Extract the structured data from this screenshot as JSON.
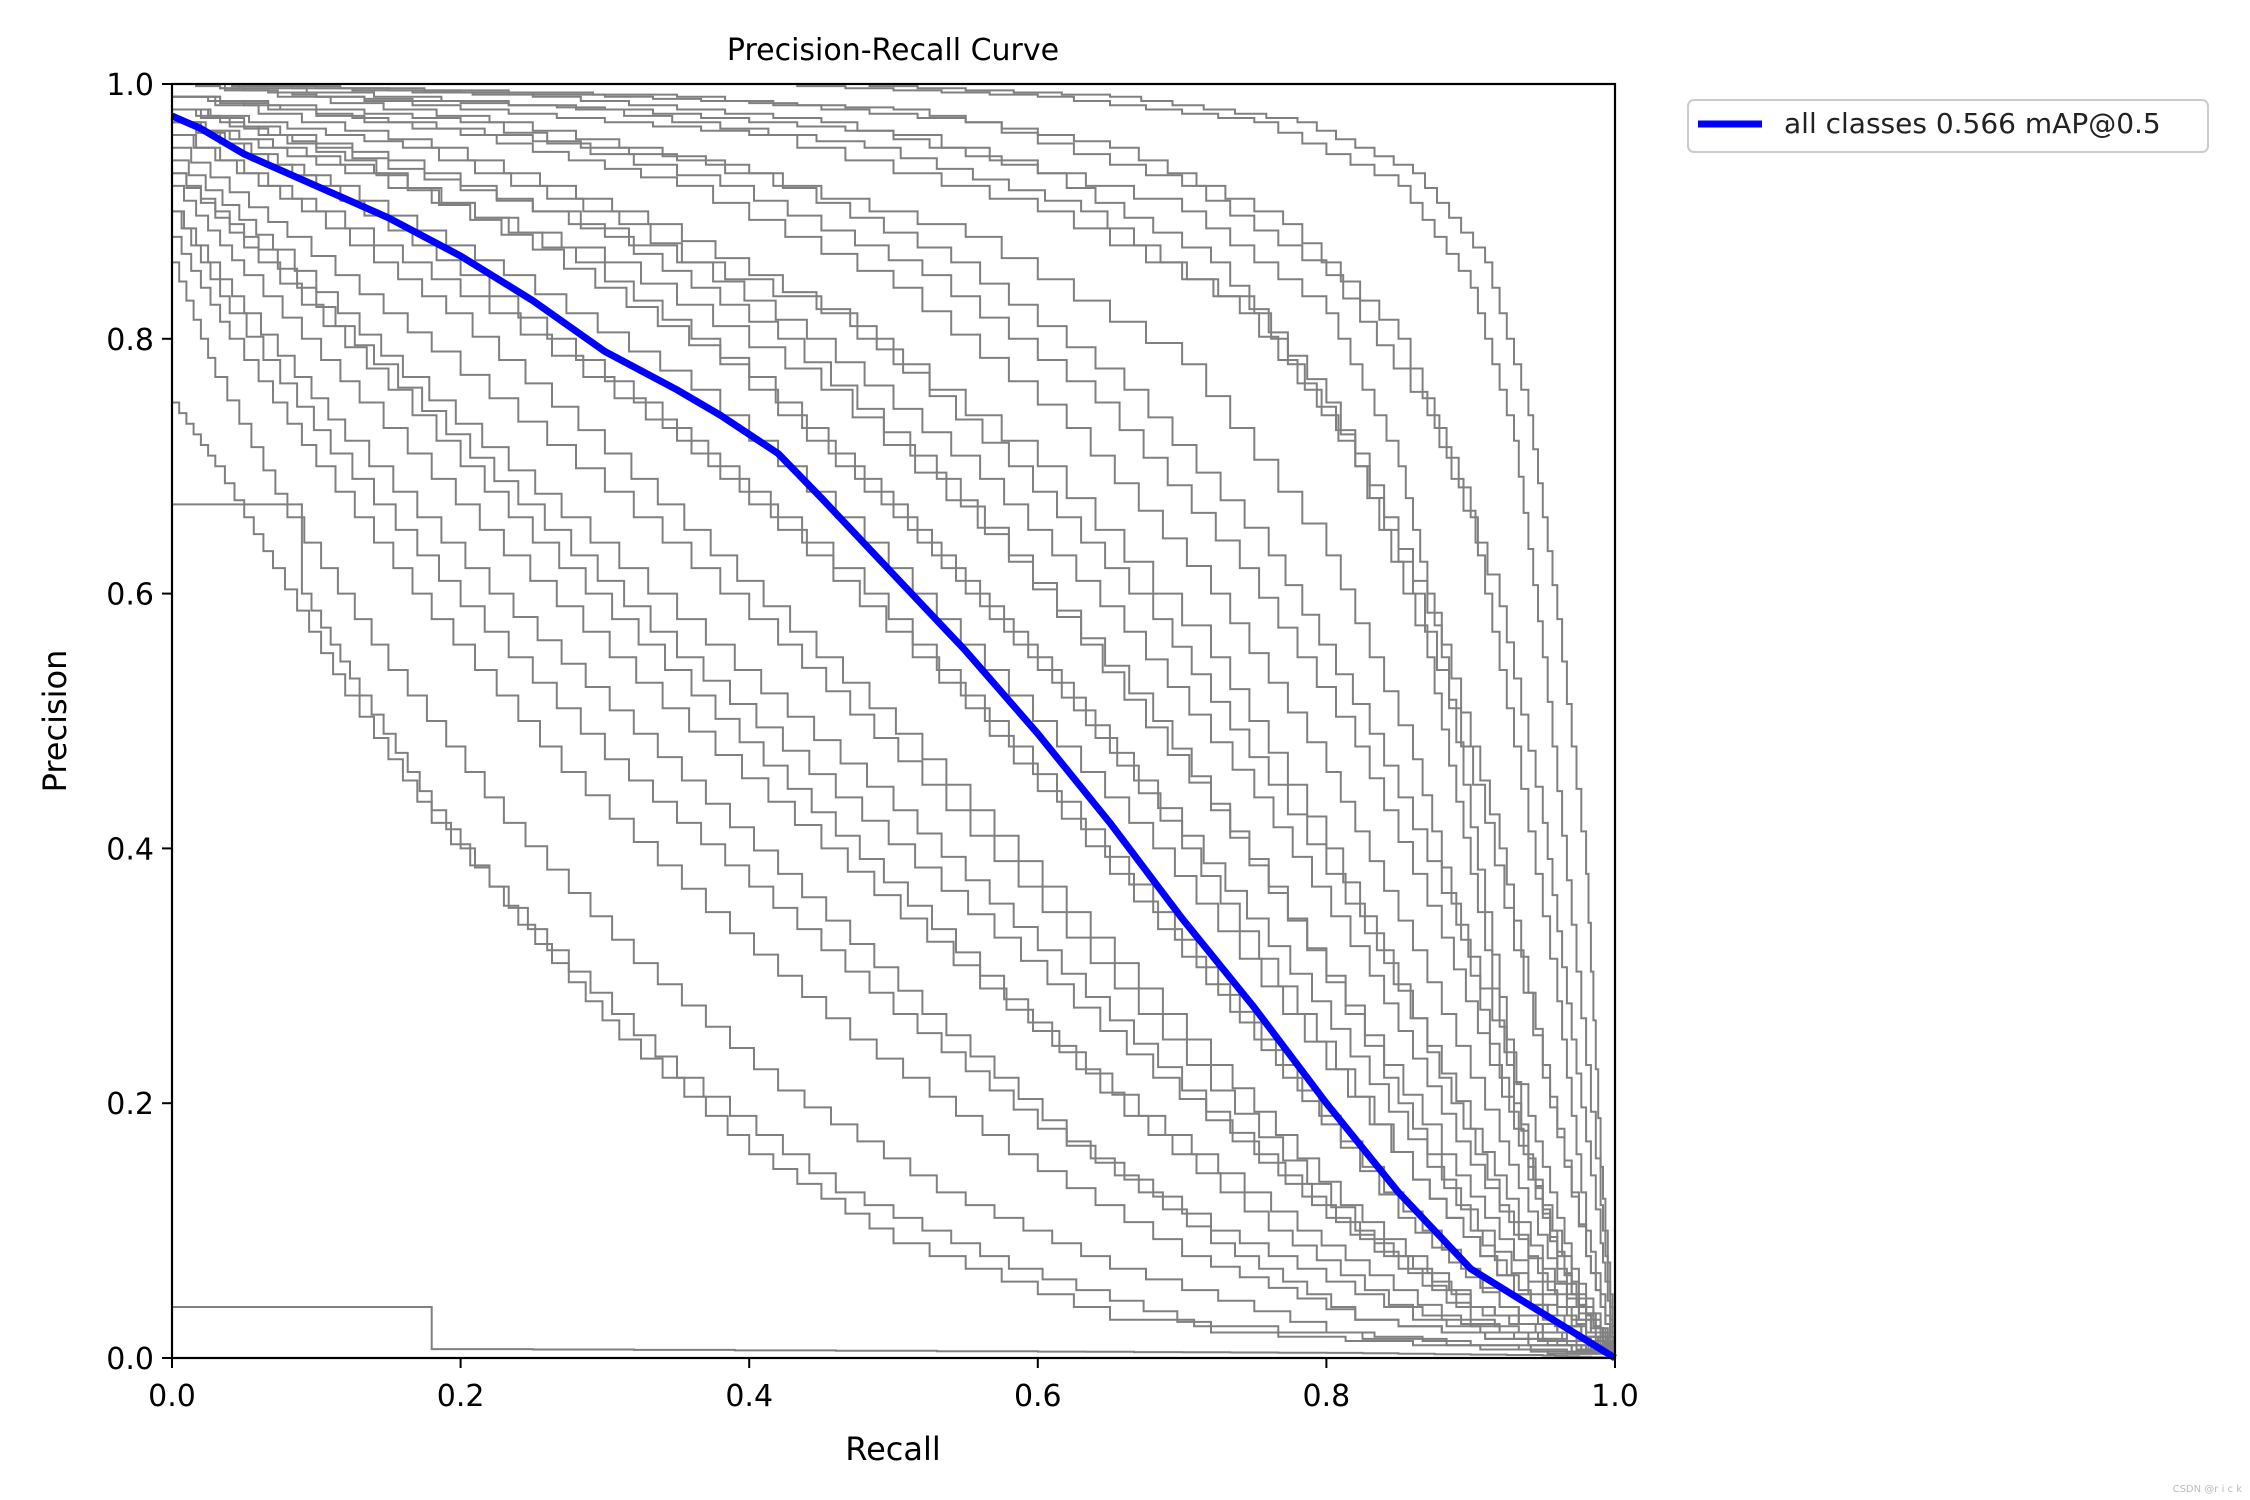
{
  "chart_data": {
    "type": "line",
    "title": "Precision-Recall Curve",
    "xlabel": "Recall",
    "ylabel": "Precision",
    "xlim": [
      0.0,
      1.0
    ],
    "ylim": [
      0.0,
      1.0
    ],
    "xticks": [
      "0.0",
      "0.2",
      "0.4",
      "0.6",
      "0.8",
      "1.0"
    ],
    "yticks": [
      "0.0",
      "0.2",
      "0.4",
      "0.6",
      "0.8",
      "1.0"
    ],
    "grid": false,
    "legend": {
      "placement": "outside-top-right",
      "entries": [
        "all classes 0.566 mAP@0.5"
      ]
    },
    "colors": {
      "class_curves": "#808080",
      "all_classes": "#0000ff"
    },
    "series": [
      {
        "name": "all classes 0.566 mAP@0.5",
        "x": [
          0.0,
          0.02,
          0.05,
          0.08,
          0.11,
          0.15,
          0.2,
          0.25,
          0.3,
          0.35,
          0.38,
          0.42,
          0.45,
          0.5,
          0.55,
          0.6,
          0.65,
          0.7,
          0.75,
          0.8,
          0.85,
          0.9,
          0.95,
          1.0
        ],
        "y": [
          0.975,
          0.965,
          0.945,
          0.93,
          0.915,
          0.895,
          0.865,
          0.83,
          0.79,
          0.76,
          0.74,
          0.71,
          0.675,
          0.615,
          0.555,
          0.49,
          0.42,
          0.345,
          0.275,
          0.2,
          0.13,
          0.07,
          0.035,
          0.0
        ]
      }
    ],
    "class_curves": [
      {
        "x": [
          0.0,
          0.1,
          0.3,
          0.5,
          0.7,
          0.8,
          0.85,
          0.88,
          0.91,
          0.94,
          0.97,
          1.0
        ],
        "y": [
          1.0,
          0.99,
          0.98,
          0.96,
          0.9,
          0.82,
          0.7,
          0.55,
          0.35,
          0.15,
          0.05,
          0.0
        ]
      },
      {
        "x": [
          0.0,
          0.2,
          0.4,
          0.6,
          0.75,
          0.82,
          0.87,
          0.9,
          0.93,
          0.96,
          1.0
        ],
        "y": [
          1.0,
          0.98,
          0.96,
          0.9,
          0.82,
          0.7,
          0.55,
          0.38,
          0.2,
          0.07,
          0.0
        ]
      },
      {
        "x": [
          0.0,
          0.15,
          0.35,
          0.55,
          0.7,
          0.8,
          0.86,
          0.9,
          0.94,
          0.97,
          1.0
        ],
        "y": [
          0.99,
          0.97,
          0.94,
          0.88,
          0.78,
          0.63,
          0.47,
          0.3,
          0.14,
          0.05,
          0.0
        ]
      },
      {
        "x": [
          0.0,
          0.1,
          0.25,
          0.45,
          0.6,
          0.72,
          0.8,
          0.87,
          0.92,
          0.96,
          1.0
        ],
        "y": [
          0.98,
          0.95,
          0.9,
          0.82,
          0.7,
          0.55,
          0.4,
          0.24,
          0.12,
          0.04,
          0.0
        ]
      },
      {
        "x": [
          0.0,
          0.12,
          0.3,
          0.45,
          0.58,
          0.68,
          0.76,
          0.84,
          0.9,
          0.95,
          1.0
        ],
        "y": [
          0.97,
          0.93,
          0.86,
          0.76,
          0.63,
          0.5,
          0.37,
          0.22,
          0.1,
          0.03,
          0.0
        ]
      },
      {
        "x": [
          0.0,
          0.1,
          0.22,
          0.35,
          0.48,
          0.58,
          0.68,
          0.77,
          0.85,
          0.92,
          1.0
        ],
        "y": [
          0.96,
          0.9,
          0.82,
          0.72,
          0.6,
          0.48,
          0.35,
          0.22,
          0.11,
          0.04,
          0.0
        ]
      },
      {
        "x": [
          0.0,
          0.08,
          0.18,
          0.3,
          0.42,
          0.52,
          0.62,
          0.72,
          0.82,
          0.9,
          1.0
        ],
        "y": [
          0.95,
          0.88,
          0.79,
          0.68,
          0.56,
          0.45,
          0.33,
          0.21,
          0.1,
          0.04,
          0.0
        ]
      },
      {
        "x": [
          0.0,
          0.06,
          0.15,
          0.25,
          0.36,
          0.46,
          0.56,
          0.66,
          0.76,
          0.86,
          1.0
        ],
        "y": [
          0.93,
          0.86,
          0.76,
          0.64,
          0.52,
          0.41,
          0.3,
          0.19,
          0.1,
          0.03,
          0.0
        ]
      },
      {
        "x": [
          0.0,
          0.05,
          0.12,
          0.22,
          0.32,
          0.42,
          0.52,
          0.62,
          0.72,
          0.82,
          1.0
        ],
        "y": [
          0.9,
          0.82,
          0.72,
          0.6,
          0.49,
          0.38,
          0.27,
          0.17,
          0.09,
          0.03,
          0.0
        ]
      },
      {
        "x": [
          0.0,
          0.04,
          0.1,
          0.18,
          0.27,
          0.37,
          0.47,
          0.58,
          0.7,
          0.82,
          1.0
        ],
        "y": [
          0.88,
          0.8,
          0.7,
          0.58,
          0.46,
          0.35,
          0.25,
          0.16,
          0.08,
          0.03,
          0.0
        ]
      },
      {
        "x": [
          0.0,
          0.03,
          0.08,
          0.15,
          0.23,
          0.32,
          0.42,
          0.53,
          0.65,
          0.8,
          1.0
        ],
        "y": [
          0.86,
          0.77,
          0.66,
          0.54,
          0.42,
          0.31,
          0.21,
          0.13,
          0.07,
          0.02,
          0.0
        ]
      },
      {
        "x": [
          0.0,
          0.03,
          0.07,
          0.12,
          0.18,
          0.26,
          0.35,
          0.46,
          0.58,
          0.72,
          1.0
        ],
        "y": [
          0.75,
          0.7,
          0.62,
          0.52,
          0.42,
          0.32,
          0.22,
          0.13,
          0.07,
          0.02,
          0.0
        ]
      },
      {
        "x": [
          0.0,
          0.09,
          0.09,
          0.13,
          0.18,
          0.24,
          0.31,
          0.4,
          0.5,
          0.65,
          1.0
        ],
        "y": [
          0.67,
          0.67,
          0.6,
          0.52,
          0.43,
          0.34,
          0.25,
          0.16,
          0.09,
          0.03,
          0.0
        ]
      },
      {
        "x": [
          0.0,
          0.2,
          0.35,
          0.5,
          0.62,
          0.72,
          0.8,
          0.86,
          0.92,
          0.96,
          1.0
        ],
        "y": [
          0.99,
          0.96,
          0.92,
          0.84,
          0.73,
          0.6,
          0.46,
          0.32,
          0.17,
          0.06,
          0.0
        ]
      },
      {
        "x": [
          0.0,
          0.15,
          0.3,
          0.42,
          0.53,
          0.63,
          0.72,
          0.8,
          0.88,
          0.94,
          1.0
        ],
        "y": [
          0.98,
          0.94,
          0.88,
          0.8,
          0.69,
          0.56,
          0.43,
          0.3,
          0.16,
          0.06,
          0.0
        ]
      },
      {
        "x": [
          0.0,
          0.25,
          0.45,
          0.6,
          0.72,
          0.8,
          0.86,
          0.91,
          0.95,
          0.98,
          1.0
        ],
        "y": [
          1.0,
          0.99,
          0.97,
          0.93,
          0.86,
          0.75,
          0.6,
          0.42,
          0.22,
          0.08,
          0.0
        ]
      },
      {
        "x": [
          0.0,
          0.3,
          0.5,
          0.65,
          0.77,
          0.85,
          0.9,
          0.93,
          0.96,
          0.98,
          1.0
        ],
        "y": [
          1.0,
          0.99,
          0.98,
          0.95,
          0.89,
          0.8,
          0.66,
          0.48,
          0.28,
          0.1,
          0.0
        ]
      },
      {
        "x": [
          0.0,
          0.4,
          0.6,
          0.75,
          0.85,
          0.9,
          0.93,
          0.95,
          0.97,
          0.99,
          1.0
        ],
        "y": [
          1.0,
          1.0,
          0.99,
          0.97,
          0.92,
          0.84,
          0.72,
          0.55,
          0.34,
          0.12,
          0.0
        ]
      },
      {
        "x": [
          0.0,
          0.1,
          0.2,
          0.32,
          0.44,
          0.55,
          0.65,
          0.75,
          0.84,
          0.92,
          1.0
        ],
        "y": [
          0.97,
          0.92,
          0.85,
          0.75,
          0.63,
          0.51,
          0.38,
          0.25,
          0.13,
          0.04,
          0.0
        ]
      },
      {
        "x": [
          0.0,
          0.12,
          0.25,
          0.38,
          0.5,
          0.6,
          0.7,
          0.79,
          0.87,
          0.94,
          1.0
        ],
        "y": [
          0.98,
          0.94,
          0.87,
          0.78,
          0.66,
          0.54,
          0.41,
          0.28,
          0.15,
          0.05,
          0.0
        ]
      },
      {
        "x": [
          0.0,
          0.07,
          0.16,
          0.27,
          0.39,
          0.5,
          0.6,
          0.7,
          0.8,
          0.9,
          1.0
        ],
        "y": [
          0.94,
          0.87,
          0.77,
          0.66,
          0.54,
          0.43,
          0.32,
          0.21,
          0.11,
          0.03,
          0.0
        ]
      },
      {
        "x": [
          0.0,
          0.18,
          0.33,
          0.47,
          0.58,
          0.68,
          0.76,
          0.84,
          0.9,
          0.95,
          1.0
        ],
        "y": [
          0.99,
          0.95,
          0.89,
          0.81,
          0.7,
          0.58,
          0.45,
          0.31,
          0.18,
          0.07,
          0.0
        ]
      },
      {
        "x": [
          0.0,
          0.22,
          0.4,
          0.54,
          0.66,
          0.76,
          0.83,
          0.89,
          0.94,
          0.97,
          1.0
        ],
        "y": [
          1.0,
          0.97,
          0.93,
          0.86,
          0.76,
          0.63,
          0.49,
          0.34,
          0.19,
          0.07,
          0.0
        ]
      },
      {
        "x": [
          0.0,
          0.35,
          0.55,
          0.7,
          0.8,
          0.87,
          0.92,
          0.95,
          0.97,
          0.99,
          1.0
        ],
        "y": [
          1.0,
          0.99,
          0.97,
          0.92,
          0.85,
          0.74,
          0.59,
          0.42,
          0.25,
          0.09,
          0.0
        ]
      },
      {
        "x": [
          0.0,
          0.05,
          0.13,
          0.23,
          0.34,
          0.45,
          0.56,
          0.67,
          0.78,
          0.88,
          1.0
        ],
        "y": [
          0.92,
          0.85,
          0.75,
          0.63,
          0.51,
          0.4,
          0.29,
          0.19,
          0.1,
          0.03,
          0.0
        ]
      },
      {
        "x": [
          0.0,
          0.14,
          0.28,
          0.4,
          0.51,
          0.61,
          0.7,
          0.78,
          0.86,
          0.93,
          1.0
        ],
        "y": [
          0.97,
          0.93,
          0.86,
          0.77,
          0.65,
          0.53,
          0.4,
          0.27,
          0.14,
          0.05,
          0.0
        ]
      },
      {
        "x": [
          0.0,
          0.28,
          0.48,
          0.63,
          0.74,
          0.82,
          0.88,
          0.92,
          0.95,
          0.98,
          1.0
        ],
        "y": [
          1.0,
          0.98,
          0.95,
          0.9,
          0.82,
          0.71,
          0.56,
          0.4,
          0.23,
          0.08,
          0.0
        ]
      },
      {
        "x": [
          0.0,
          0.04,
          0.11,
          0.2,
          0.3,
          0.4,
          0.5,
          0.6,
          0.72,
          0.84,
          1.0
        ],
        "y": [
          0.9,
          0.82,
          0.71,
          0.59,
          0.47,
          0.37,
          0.27,
          0.18,
          0.1,
          0.04,
          0.0
        ]
      },
      {
        "x": [
          0.0,
          0.16,
          0.31,
          0.44,
          0.56,
          0.66,
          0.75,
          0.83,
          0.89,
          0.95,
          1.0
        ],
        "y": [
          0.98,
          0.95,
          0.89,
          0.8,
          0.69,
          0.57,
          0.44,
          0.3,
          0.17,
          0.06,
          0.0
        ]
      },
      {
        "x": [
          0.0,
          0.45,
          0.65,
          0.78,
          0.86,
          0.91,
          0.94,
          0.96,
          0.98,
          0.99,
          1.0
        ],
        "y": [
          1.0,
          1.0,
          0.99,
          0.97,
          0.93,
          0.86,
          0.74,
          0.58,
          0.38,
          0.15,
          0.0
        ]
      },
      {
        "x": [
          0.0,
          0.09,
          0.19,
          0.3,
          0.41,
          0.52,
          0.62,
          0.72,
          0.81,
          0.9,
          1.0
        ],
        "y": [
          0.96,
          0.9,
          0.82,
          0.71,
          0.59,
          0.47,
          0.35,
          0.23,
          0.12,
          0.04,
          0.0
        ]
      },
      {
        "x": [
          0.0,
          0.18,
          0.18,
          0.6,
          0.8,
          0.95,
          1.0
        ],
        "y": [
          0.04,
          0.04,
          0.007,
          0.005,
          0.004,
          0.002,
          0.0
        ]
      },
      {
        "x": [
          0.0,
          0.2,
          0.38,
          0.52,
          0.64,
          0.74,
          0.82,
          0.88,
          0.93,
          0.97,
          1.0
        ],
        "y": [
          0.99,
          0.97,
          0.92,
          0.85,
          0.75,
          0.62,
          0.48,
          0.33,
          0.18,
          0.06,
          0.0
        ]
      },
      {
        "x": [
          0.0,
          0.06,
          0.14,
          0.24,
          0.35,
          0.46,
          0.57,
          0.68,
          0.79,
          0.89,
          1.0
        ],
        "y": [
          0.93,
          0.87,
          0.78,
          0.67,
          0.55,
          0.44,
          0.33,
          0.22,
          0.12,
          0.04,
          0.0
        ]
      },
      {
        "x": [
          0.0,
          0.11,
          0.23,
          0.36,
          0.48,
          0.58,
          0.68,
          0.77,
          0.86,
          0.93,
          1.0
        ],
        "y": [
          0.97,
          0.92,
          0.85,
          0.76,
          0.64,
          0.52,
          0.4,
          0.27,
          0.14,
          0.05,
          0.0
        ]
      }
    ]
  },
  "watermark": "CSDN @r i c k"
}
